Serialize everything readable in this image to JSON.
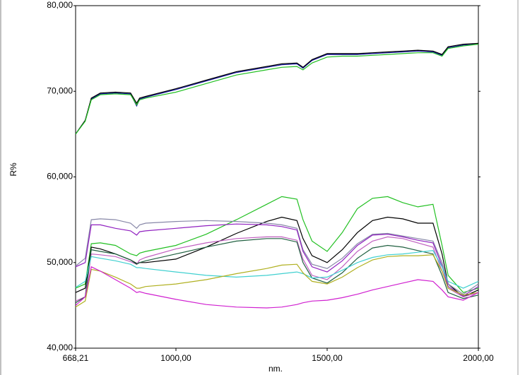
{
  "chart_data": {
    "type": "line",
    "ylabel": "R%",
    "xlabel": "nm.",
    "xlim": [
      668.21,
      2000
    ],
    "ylim": [
      40,
      80
    ],
    "xticks": [
      {
        "value": 668.21,
        "label": "668,21"
      },
      {
        "value": 1000,
        "label": "1000,00"
      },
      {
        "value": 1500,
        "label": "1500,00"
      },
      {
        "value": 2000,
        "label": "2000,00"
      }
    ],
    "yticks": [
      {
        "value": 40,
        "label": "40,000"
      },
      {
        "value": 50,
        "label": "50,000"
      },
      {
        "value": 60,
        "label": "60,000"
      },
      {
        "value": 70,
        "label": "70,000"
      },
      {
        "value": 80,
        "label": "80,000"
      }
    ],
    "grid": false,
    "x": [
      668.21,
      700,
      720,
      750,
      800,
      850,
      870,
      880,
      900,
      1000,
      1100,
      1200,
      1300,
      1350,
      1400,
      1420,
      1450,
      1500,
      1550,
      1600,
      1650,
      1700,
      1750,
      1800,
      1850,
      1880,
      1900,
      1950,
      2000
    ],
    "series": [
      {
        "color": "#1010a0",
        "values": [
          65.0,
          66.6,
          69.1,
          69.7,
          69.8,
          69.7,
          68.3,
          69.1,
          69.3,
          70.2,
          71.2,
          72.2,
          72.8,
          73.1,
          73.2,
          72.7,
          73.6,
          74.3,
          74.3,
          74.3,
          74.4,
          74.5,
          74.6,
          74.7,
          74.6,
          74.2,
          75.1,
          75.4,
          75.5
        ]
      },
      {
        "color": "#000000",
        "values": [
          65.0,
          66.6,
          69.2,
          69.8,
          69.9,
          69.8,
          68.6,
          69.2,
          69.4,
          70.3,
          71.3,
          72.3,
          72.9,
          73.2,
          73.3,
          72.8,
          73.7,
          74.4,
          74.4,
          74.4,
          74.5,
          74.6,
          74.7,
          74.8,
          74.7,
          74.3,
          75.2,
          75.5,
          75.6
        ]
      },
      {
        "color": "#22c022",
        "values": [
          65.0,
          66.5,
          69.0,
          69.6,
          69.7,
          69.6,
          68.4,
          69.0,
          69.2,
          69.9,
          70.9,
          71.9,
          72.5,
          72.8,
          72.9,
          72.5,
          73.3,
          74.0,
          74.1,
          74.1,
          74.2,
          74.3,
          74.4,
          74.5,
          74.5,
          74.1,
          75.0,
          75.3,
          75.5
        ]
      },
      {
        "color": "#22c022",
        "values": [
          47.0,
          47.5,
          52.2,
          52.3,
          52.0,
          51.0,
          50.8,
          51.1,
          51.3,
          52.0,
          53.3,
          55.0,
          56.8,
          57.7,
          57.4,
          55.0,
          52.5,
          51.3,
          53.5,
          56.3,
          57.5,
          57.7,
          57.0,
          56.5,
          56.8,
          52.0,
          48.5,
          46.5,
          47.0
        ]
      },
      {
        "color": "#000000",
        "values": [
          46.5,
          47.0,
          51.8,
          51.6,
          51.0,
          50.3,
          49.9,
          50.0,
          50.0,
          50.4,
          51.8,
          53.4,
          54.8,
          55.3,
          54.9,
          52.8,
          50.8,
          50.0,
          51.5,
          53.5,
          54.9,
          55.3,
          55.1,
          54.6,
          54.6,
          51.0,
          47.5,
          46.0,
          46.8
        ]
      },
      {
        "color": "#8888a8",
        "values": [
          49.6,
          50.5,
          55.0,
          55.1,
          55.0,
          54.6,
          54.0,
          54.4,
          54.6,
          54.8,
          54.9,
          54.8,
          54.6,
          54.4,
          54.0,
          51.5,
          49.8,
          49.3,
          50.5,
          52.2,
          53.3,
          53.4,
          53.1,
          52.8,
          52.5,
          50.0,
          47.5,
          46.3,
          47.5
        ]
      },
      {
        "color": "#9020c0",
        "values": [
          49.5,
          50.0,
          54.4,
          54.4,
          54.0,
          53.7,
          53.2,
          53.6,
          53.7,
          54.0,
          54.3,
          54.5,
          54.4,
          54.2,
          53.8,
          51.3,
          49.5,
          48.9,
          50.2,
          52.0,
          53.2,
          53.3,
          53.0,
          52.6,
          52.3,
          49.6,
          47.2,
          46.1,
          47.2
        ]
      },
      {
        "color": "#c060c0",
        "values": [
          45.5,
          46.0,
          51.0,
          50.9,
          50.7,
          50.1,
          49.8,
          50.3,
          50.6,
          51.6,
          52.3,
          52.8,
          53.0,
          53.0,
          52.6,
          50.4,
          48.5,
          48.0,
          49.5,
          51.3,
          52.5,
          53.0,
          52.8,
          52.3,
          51.8,
          49.0,
          47.0,
          46.0,
          46.5
        ]
      },
      {
        "color": "#206040",
        "values": [
          45.3,
          46.0,
          51.5,
          51.3,
          51.0,
          50.3,
          49.8,
          50.0,
          50.2,
          51.0,
          51.8,
          52.5,
          52.8,
          52.8,
          52.4,
          50.0,
          48.2,
          47.6,
          48.8,
          50.5,
          51.7,
          52.0,
          51.8,
          51.4,
          51.0,
          48.5,
          46.5,
          45.8,
          46.2
        ]
      },
      {
        "color": "#40d0d0",
        "values": [
          47.1,
          47.8,
          50.7,
          50.5,
          50.2,
          49.8,
          49.4,
          49.4,
          49.3,
          48.9,
          48.5,
          48.3,
          48.5,
          48.7,
          48.9,
          48.7,
          48.2,
          48.3,
          49.1,
          50.0,
          50.6,
          50.9,
          51.0,
          51.2,
          51.4,
          49.5,
          47.8,
          47.0,
          47.8
        ]
      },
      {
        "color": "#b0b020",
        "values": [
          44.8,
          45.5,
          49.2,
          49.0,
          48.3,
          47.5,
          47.0,
          47.0,
          47.2,
          47.5,
          48.0,
          48.7,
          49.3,
          49.7,
          49.8,
          48.8,
          47.8,
          47.5,
          48.3,
          49.4,
          50.3,
          50.7,
          50.8,
          50.8,
          50.9,
          49.0,
          47.0,
          46.2,
          46.5
        ]
      },
      {
        "color": "#d020d0",
        "values": [
          45.0,
          46.0,
          49.5,
          49.0,
          48.0,
          47.0,
          46.5,
          46.6,
          46.4,
          45.7,
          45.1,
          44.8,
          44.7,
          44.8,
          45.1,
          45.3,
          45.5,
          45.6,
          45.9,
          46.3,
          46.8,
          47.2,
          47.6,
          48.0,
          47.8,
          46.8,
          46.0,
          45.6,
          46.5
        ]
      }
    ]
  }
}
